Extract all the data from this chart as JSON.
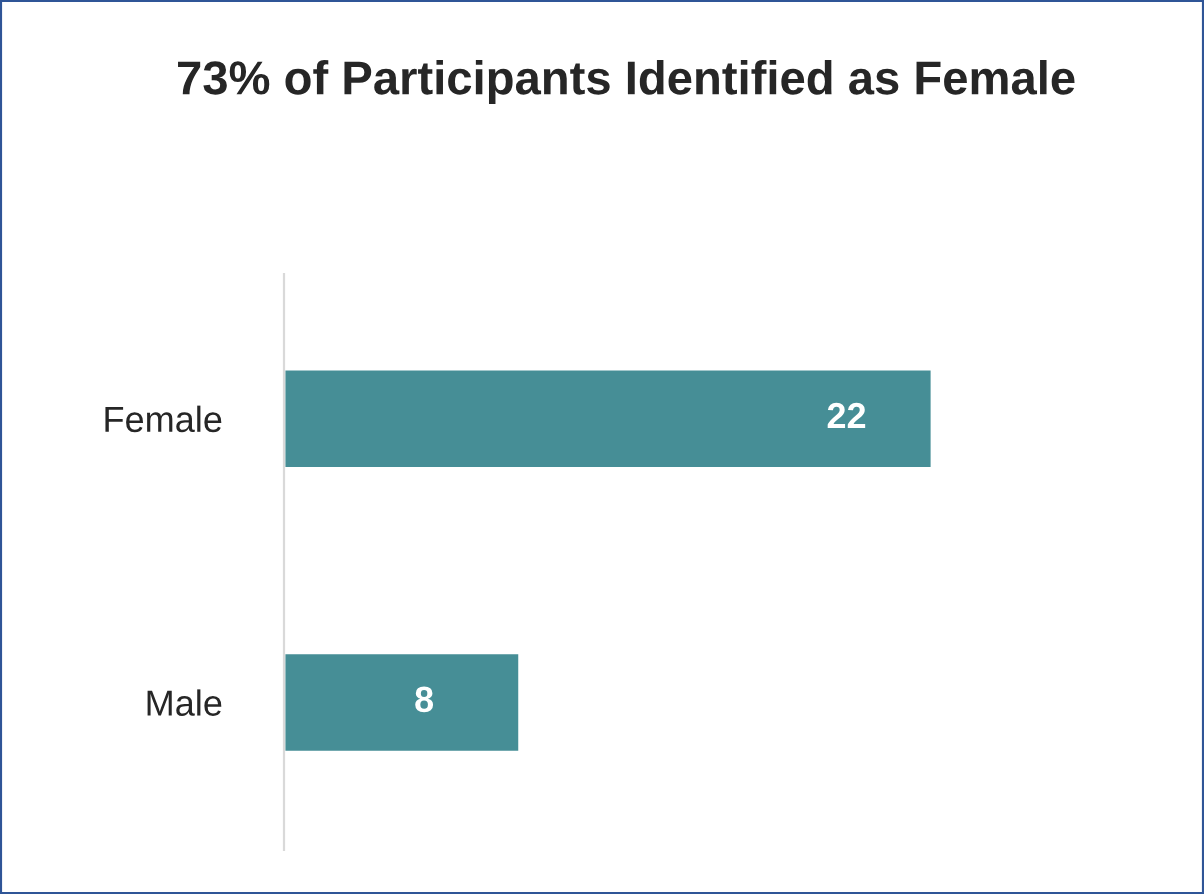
{
  "chart_data": {
    "type": "bar",
    "orientation": "horizontal",
    "title": "73% of Participants Identified as Female",
    "categories": [
      "Female",
      "Male"
    ],
    "values": [
      22,
      8
    ],
    "color": "#468e96",
    "data_labels": true,
    "grid": false,
    "legend": false
  }
}
